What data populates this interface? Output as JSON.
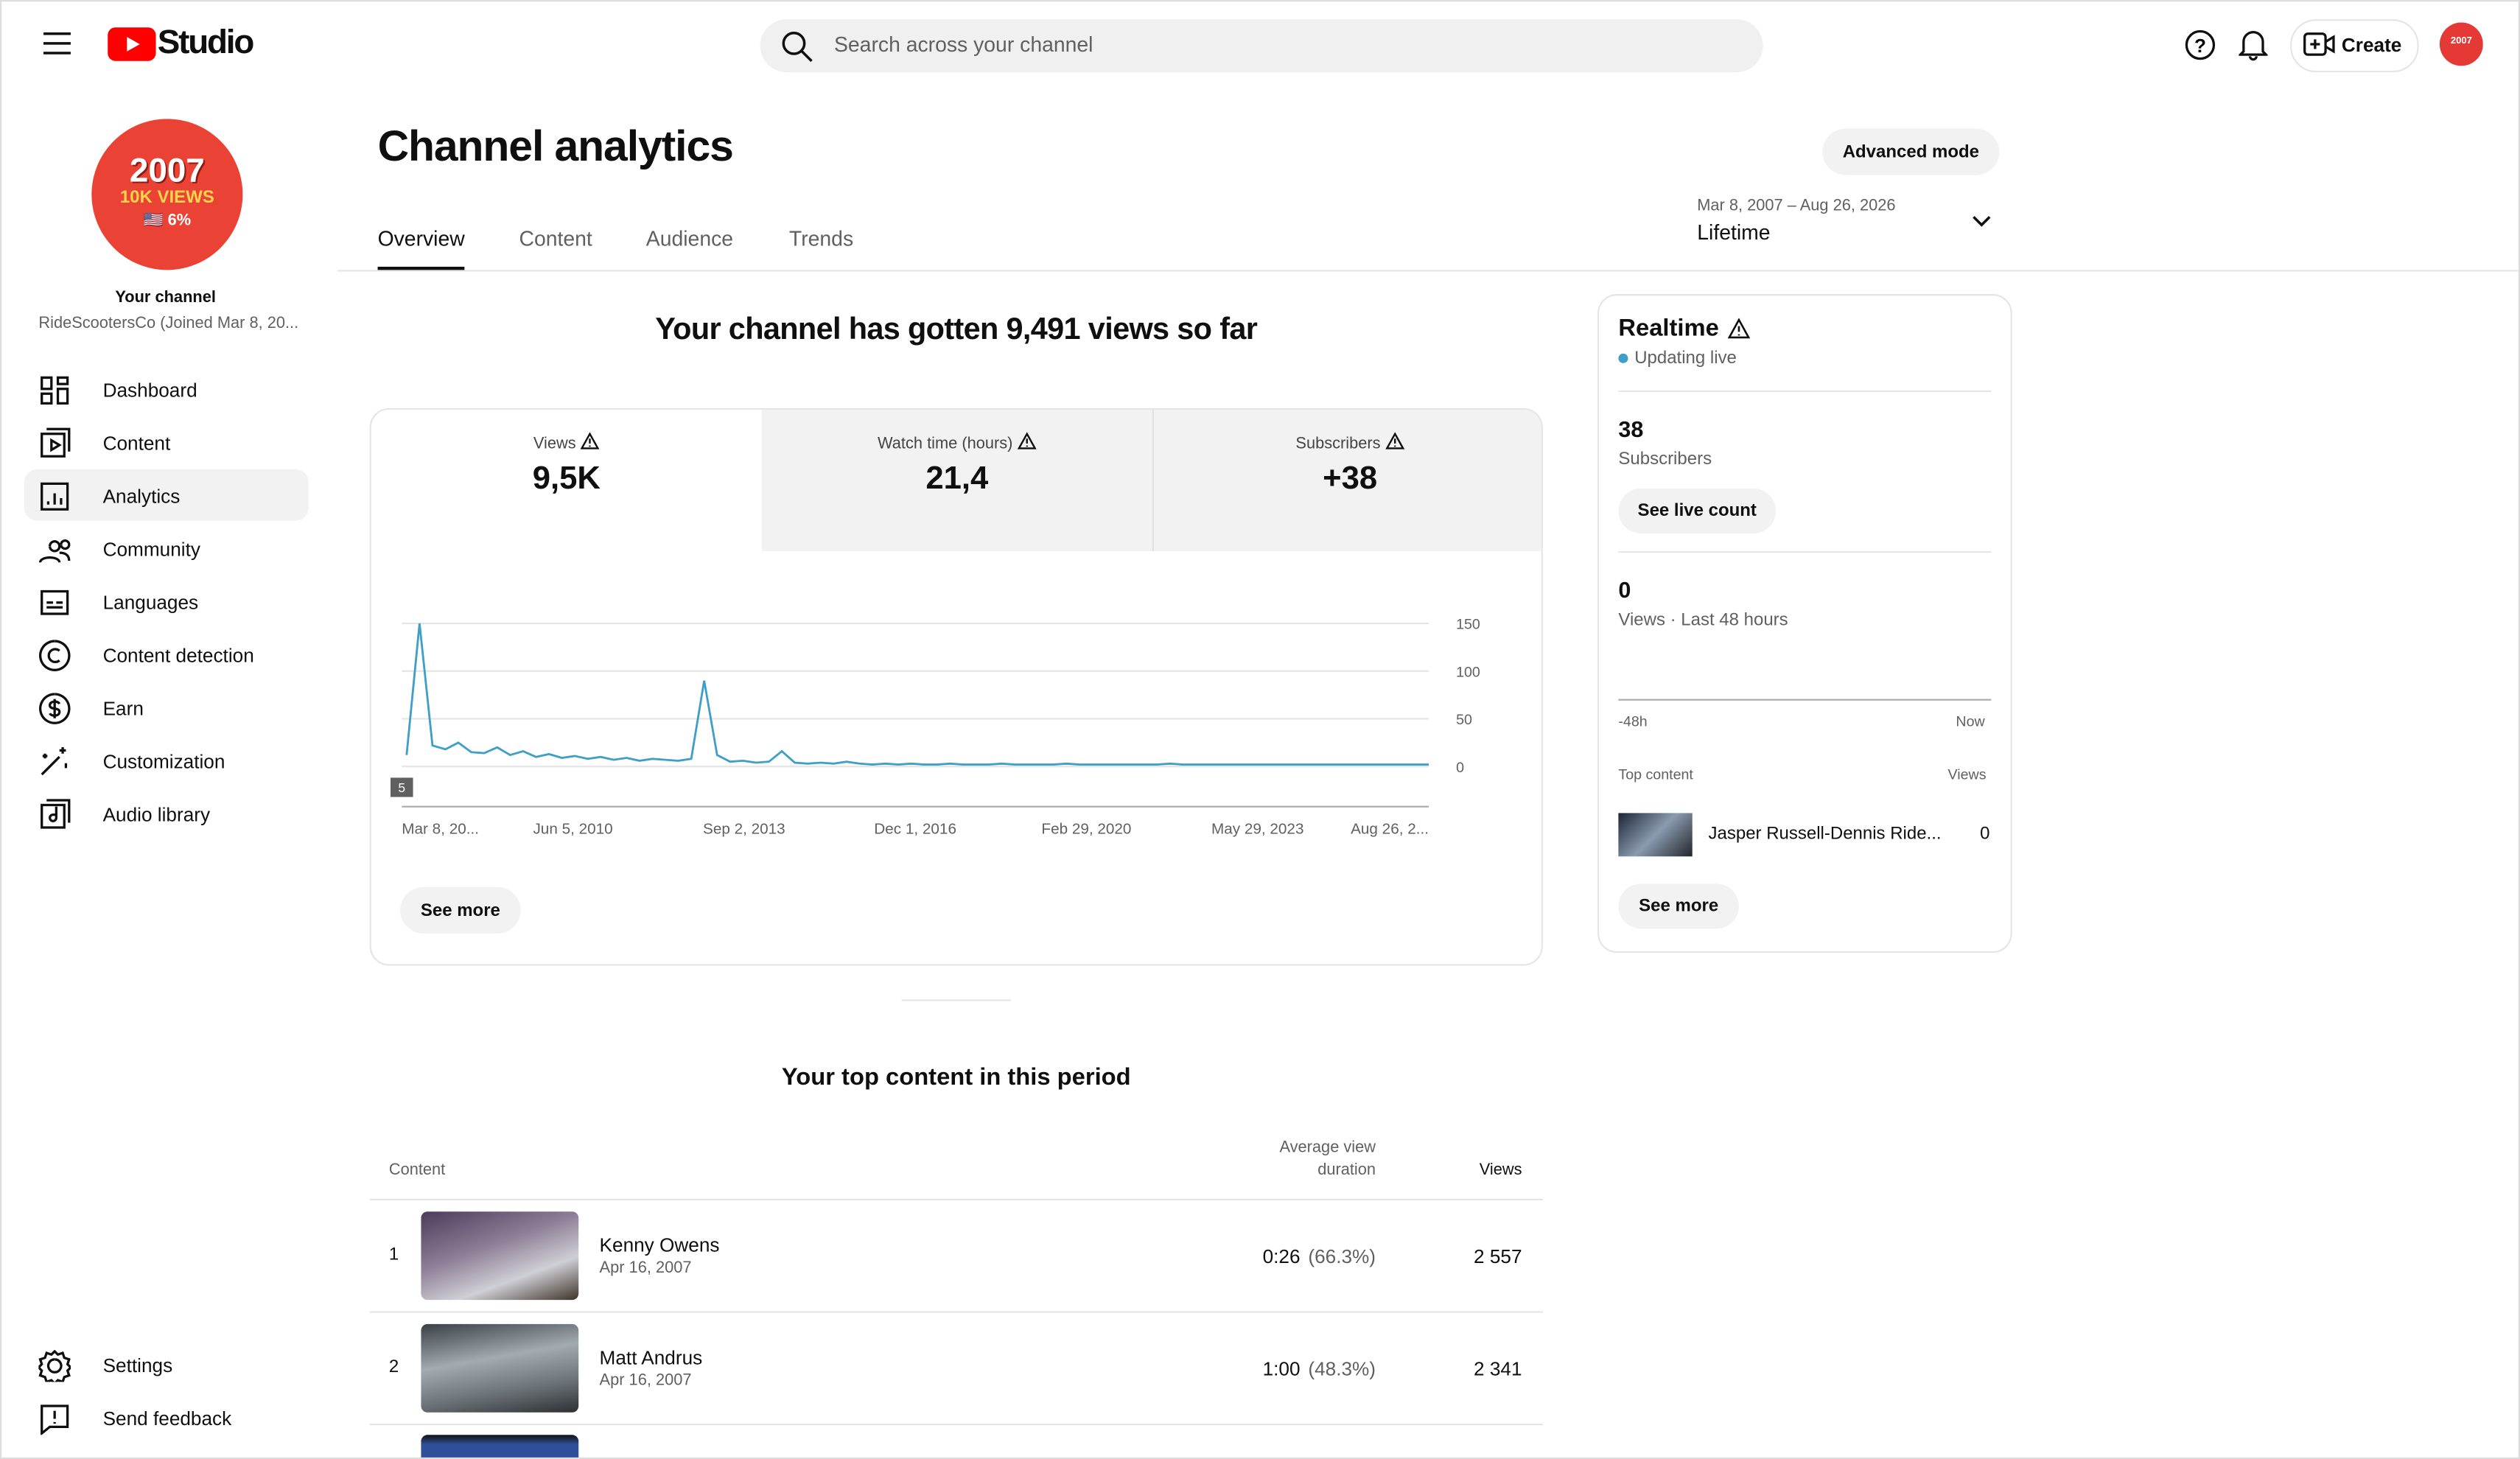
{
  "header": {
    "logo": "Studio",
    "search_placeholder": "Search across your channel",
    "create": "Create"
  },
  "sidebar": {
    "avatar_lines": [
      "2007",
      "10K VIEWS",
      "🇺🇸 6%"
    ],
    "channel_label": "Your channel",
    "channel_name": "RideScootersCo (Joined Mar 8, 20...",
    "nav": [
      "Dashboard",
      "Content",
      "Analytics",
      "Community",
      "Languages",
      "Content detection",
      "Earn",
      "Customization",
      "Audio library"
    ],
    "footer_nav": [
      "Settings",
      "Send feedback"
    ]
  },
  "page": {
    "title": "Channel analytics",
    "advanced": "Advanced mode",
    "tabs": [
      "Overview",
      "Content",
      "Audience",
      "Trends"
    ],
    "date_range": "Mar 8, 2007 – Aug 26, 2026",
    "period": "Lifetime"
  },
  "overview": {
    "headline": "Your channel has gotten 9,491 views so far",
    "metrics": [
      {
        "label": "Views",
        "value": "9,5K"
      },
      {
        "label": "Watch time (hours)",
        "value": "21,4"
      },
      {
        "label": "Subscribers",
        "value": "+38"
      }
    ],
    "see_more": "See more"
  },
  "chart_data": {
    "type": "line",
    "color": "#3f9fc6",
    "ylim": [
      0,
      150
    ],
    "yticks": [
      0,
      50,
      100,
      150
    ],
    "grid": true,
    "marker": "5",
    "x_labels": [
      "Mar 8, 20...",
      "Jun 5, 2010",
      "Sep 2, 2013",
      "Dec 1, 2016",
      "Feb 29, 2020",
      "May 29, 2023",
      "Aug 26, 2..."
    ],
    "values": [
      12,
      150,
      22,
      18,
      25,
      15,
      14,
      20,
      12,
      16,
      10,
      13,
      9,
      11,
      8,
      10,
      7,
      9,
      6,
      8,
      7,
      6,
      8,
      90,
      12,
      5,
      6,
      4,
      5,
      16,
      4,
      3,
      4,
      3,
      5,
      3,
      2,
      3,
      2,
      3,
      2,
      2,
      3,
      2,
      2,
      2,
      3,
      2,
      2,
      2,
      2,
      3,
      2,
      2,
      2,
      2,
      2,
      2,
      2,
      3,
      2,
      2,
      2,
      2,
      2,
      2,
      2,
      2,
      2,
      2,
      2,
      2,
      2,
      2,
      2,
      2,
      2,
      2,
      2,
      2
    ]
  },
  "realtime": {
    "title": "Realtime",
    "status": "Updating live",
    "subscribers": "38",
    "subscribers_label": "Subscribers",
    "live_count": "See live count",
    "views": "0",
    "views_label": "Views · Last 48 hours",
    "axis_start": "-48h",
    "axis_end": "Now",
    "top_label": "Top content",
    "views_col": "Views",
    "top_title": "Jasper Russell-Dennis Ride...",
    "top_views": "0",
    "see_more": "See more"
  },
  "top_content": {
    "title": "Your top content in this period",
    "columns": [
      "Content",
      "Average view duration",
      "Views"
    ],
    "rows": [
      {
        "rank": 1,
        "title": "Kenny Owens",
        "date": "Apr 16, 2007",
        "duration": "0:26",
        "percent": "(66.3%)",
        "views": "2 557"
      },
      {
        "rank": 2,
        "title": "Matt Andrus",
        "date": "Apr 16, 2007",
        "duration": "1:00",
        "percent": "(48.3%)",
        "views": "2 341"
      }
    ]
  }
}
